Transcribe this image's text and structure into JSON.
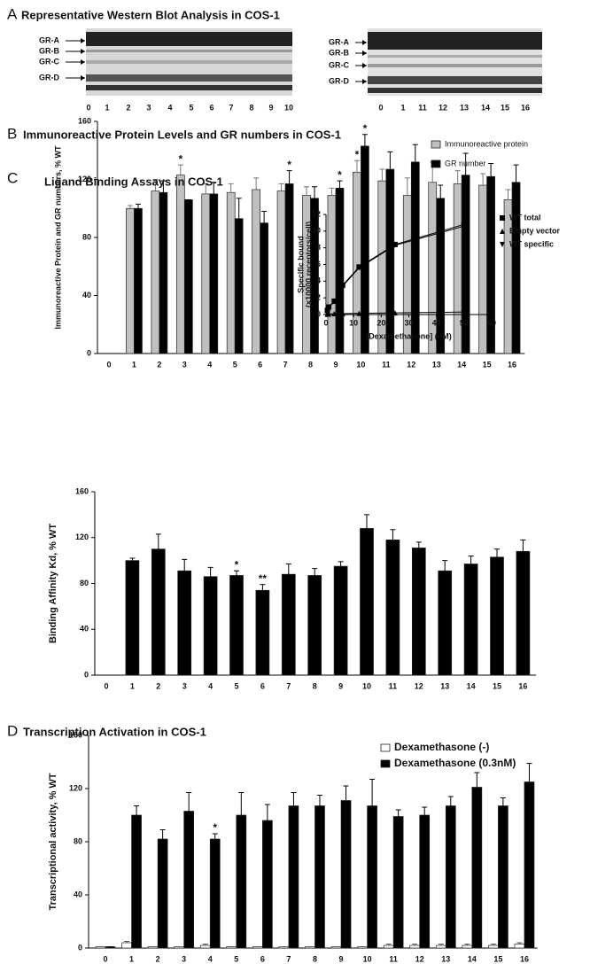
{
  "blot": {
    "panel": "A",
    "title": "Representative Western Blot Analysis in COS-1",
    "left": {
      "bands": [
        "GR-A",
        "GR-B",
        "GR-C",
        "GR-D"
      ],
      "lanes": [
        "0",
        "1",
        "2",
        "3",
        "4",
        "5",
        "6",
        "7",
        "8",
        "9",
        "10"
      ]
    },
    "right": {
      "bands": [
        "GR-A",
        "GR-B",
        "GR-C",
        "GR-D"
      ],
      "lanes": [
        "0",
        "1",
        "11",
        "12",
        "13",
        "14",
        "15",
        "16"
      ]
    }
  },
  "chart_data": [
    {
      "type": "bar",
      "panel": "B",
      "title": "Immunoreactive Protein Levels and GR numbers in COS-1",
      "ylabel": "Immunoreactive Protein and GR numbers, % WT",
      "categories": [
        "0",
        "1",
        "2",
        "3",
        "4",
        "5",
        "6",
        "7",
        "8",
        "9",
        "10",
        "11",
        "12",
        "13",
        "14",
        "15",
        "16"
      ],
      "series": [
        {
          "name": "Immunoreactive protein",
          "color": "#c0c0c0",
          "values": [
            null,
            100,
            112,
            123,
            110,
            111,
            113,
            112,
            109,
            109,
            125,
            119,
            109,
            118,
            117,
            116,
            106
          ],
          "errors": [
            null,
            2,
            8,
            7,
            7,
            6,
            8,
            5,
            6,
            5,
            8,
            8,
            12,
            14,
            9,
            8,
            7
          ],
          "annotations": [
            null,
            null,
            null,
            "*",
            null,
            null,
            null,
            null,
            null,
            null,
            "*",
            null,
            null,
            null,
            null,
            null,
            null
          ]
        },
        {
          "name": "GR number",
          "color": "#000000",
          "values": [
            null,
            100,
            111,
            106,
            110,
            93,
            90,
            117,
            107,
            114,
            143,
            127,
            132,
            107,
            123,
            122,
            118
          ],
          "errors": [
            null,
            3,
            8,
            0,
            8,
            14,
            8,
            9,
            8,
            5,
            8,
            12,
            12,
            9,
            15,
            9,
            12
          ],
          "annotations": [
            null,
            null,
            null,
            null,
            null,
            null,
            null,
            "*",
            null,
            "*",
            "*",
            null,
            null,
            null,
            null,
            null,
            null
          ]
        }
      ],
      "ylim": [
        0,
        160
      ],
      "yticks": [
        0,
        40,
        80,
        120,
        160
      ],
      "legend": "upper right",
      "grid": false
    },
    {
      "type": "bar",
      "panel": "C",
      "title": "Ligand Binding Assays in COS-1",
      "ylabel": "Binding Affinity Kd, % WT",
      "categories": [
        "0",
        "1",
        "2",
        "3",
        "4",
        "5",
        "6",
        "7",
        "8",
        "9",
        "10",
        "11",
        "12",
        "13",
        "14",
        "15",
        "16"
      ],
      "values": [
        null,
        100,
        110,
        91,
        86,
        87,
        74,
        88,
        87,
        95,
        128,
        118,
        111,
        91,
        97,
        103,
        108
      ],
      "errors": [
        null,
        2,
        13,
        10,
        8,
        4,
        5,
        9,
        6,
        4,
        12,
        9,
        5,
        9,
        7,
        7,
        10
      ],
      "annotations": [
        null,
        null,
        null,
        null,
        null,
        "*",
        "**",
        null,
        null,
        null,
        null,
        null,
        null,
        null,
        null,
        null,
        null
      ],
      "color": "#000000",
      "ylim": [
        0,
        160
      ],
      "yticks": [
        0,
        40,
        80,
        120,
        160
      ],
      "grid": false
    },
    {
      "type": "line",
      "xlabel": "[Dexamethasone] (nM)",
      "ylabel": [
        "Specific bound",
        "(×10000 receptors/cell)"
      ],
      "x": [
        0.5,
        1,
        3,
        6,
        12,
        25,
        50
      ],
      "series": [
        {
          "name": "WT total",
          "color": "#000000",
          "marker": "square",
          "values": [
            0.5,
            0.9,
            1.6,
            3.5,
            5.7,
            8.4,
            10.8
          ]
        },
        {
          "name": "Empty vector",
          "color": "#000000",
          "marker": "triangle",
          "values": [
            0.05,
            0.05,
            0.1,
            0.1,
            0.15,
            0.2,
            0.3
          ]
        },
        {
          "name": "WT specific",
          "color": "#000000",
          "marker": "triangle-down",
          "values": [
            0.45,
            0.85,
            1.55,
            3.4,
            5.6,
            8.3,
            10.6
          ]
        }
      ],
      "xlim": [
        0,
        60
      ],
      "xticks": [
        0,
        10,
        20,
        30,
        40,
        50,
        60
      ],
      "ylim": [
        0,
        12
      ],
      "yticks": [
        0,
        2,
        4,
        6,
        8,
        10,
        12
      ],
      "legend": "right",
      "grid": false
    },
    {
      "type": "bar",
      "panel": "D",
      "title": "Transcription Activation in COS-1",
      "ylabel": "Transcriptional activity, % WT",
      "categories": [
        "0",
        "1",
        "2",
        "3",
        "4",
        "5",
        "6",
        "7",
        "8",
        "9",
        "10",
        "11",
        "12",
        "13",
        "14",
        "15",
        "16"
      ],
      "series": [
        {
          "name": "Dexamethasone (-)",
          "color": "#ffffff",
          "values": [
            1,
            4,
            1,
            1,
            2,
            1,
            1,
            1,
            1,
            1,
            1,
            2,
            2,
            2,
            2,
            2,
            3
          ],
          "errors": [
            0,
            1,
            0,
            0,
            1,
            0,
            0,
            0,
            0,
            0,
            0,
            1,
            1,
            1,
            1,
            1,
            1
          ],
          "annotations": [
            null,
            null,
            null,
            null,
            null,
            null,
            null,
            null,
            null,
            null,
            null,
            null,
            null,
            null,
            null,
            null,
            null
          ]
        },
        {
          "name": "Dexamethasone (0.3nM)",
          "color": "#000000",
          "values": [
            1,
            100,
            82,
            103,
            82,
            100,
            96,
            107,
            107,
            111,
            107,
            99,
            100,
            107,
            121,
            107,
            125
          ],
          "errors": [
            0,
            7,
            7,
            14,
            4,
            17,
            12,
            10,
            8,
            11,
            20,
            5,
            6,
            7,
            11,
            6,
            14
          ],
          "annotations": [
            null,
            null,
            null,
            null,
            "*",
            null,
            null,
            null,
            null,
            null,
            null,
            null,
            null,
            null,
            null,
            null,
            null
          ]
        }
      ],
      "ylim": [
        0,
        160
      ],
      "yticks": [
        0,
        40,
        80,
        120,
        160
      ],
      "legend": "upper right",
      "grid": false
    }
  ]
}
